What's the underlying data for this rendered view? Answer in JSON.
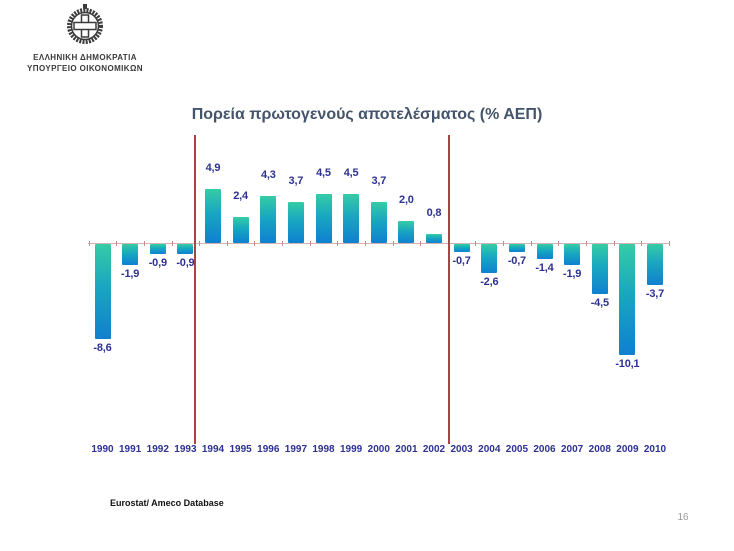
{
  "page": {
    "page_number": "16"
  },
  "header": {
    "org_line1": "ΕΛΛΗΝΙΚΗ ΔΗΜΟΚΡΑΤΙΑ",
    "org_line2": "ΥΠΟΥΡΓΕΙΟ ΟΙΚΟΝΟΜΙΚΩΝ"
  },
  "chart_data": {
    "type": "bar",
    "title": "Πορεία πρωτογενούς αποτελέσματος (% ΑΕΠ)",
    "categories": [
      "1990",
      "1991",
      "1992",
      "1993",
      "1994",
      "1995",
      "1996",
      "1997",
      "1998",
      "1999",
      "2000",
      "2001",
      "2002",
      "2003",
      "2004",
      "2005",
      "2006",
      "2007",
      "2008",
      "2009",
      "2010"
    ],
    "values": [
      -8.6,
      -1.9,
      -0.9,
      -0.9,
      4.9,
      2.4,
      4.3,
      3.7,
      4.5,
      4.5,
      3.7,
      2.0,
      0.8,
      -0.7,
      -2.6,
      -0.7,
      -1.4,
      -1.9,
      -4.5,
      -10.1,
      -3.7
    ],
    "value_labels": [
      "-8,6",
      "-1,9",
      "-0,9",
      "-0,9",
      "4,9",
      "2,4",
      "4,3",
      "3,7",
      "4,5",
      "4,5",
      "3,7",
      "2,0",
      "0,8",
      "-0,7",
      "-2,6",
      "-0,7",
      "-1,4",
      "-1,9",
      "-4,5",
      "-10,1",
      "-3,7"
    ],
    "xlabel": "",
    "ylabel": "",
    "ylim": [
      -11,
      6
    ],
    "grid": false,
    "legend": false,
    "annotations": {
      "dividers_after_category": [
        "1993",
        "2002"
      ]
    },
    "colors": {
      "bar_gradient_top": "#35cca5",
      "bar_gradient_bottom": "#0f80d0",
      "value_label": "#2d3191",
      "year_label": "#2d3191",
      "axis": "#d3b3b3",
      "divider_line": "#a94442",
      "title": "#44546a"
    }
  },
  "footer": {
    "source": "Eurostat/ Ameco Database"
  }
}
